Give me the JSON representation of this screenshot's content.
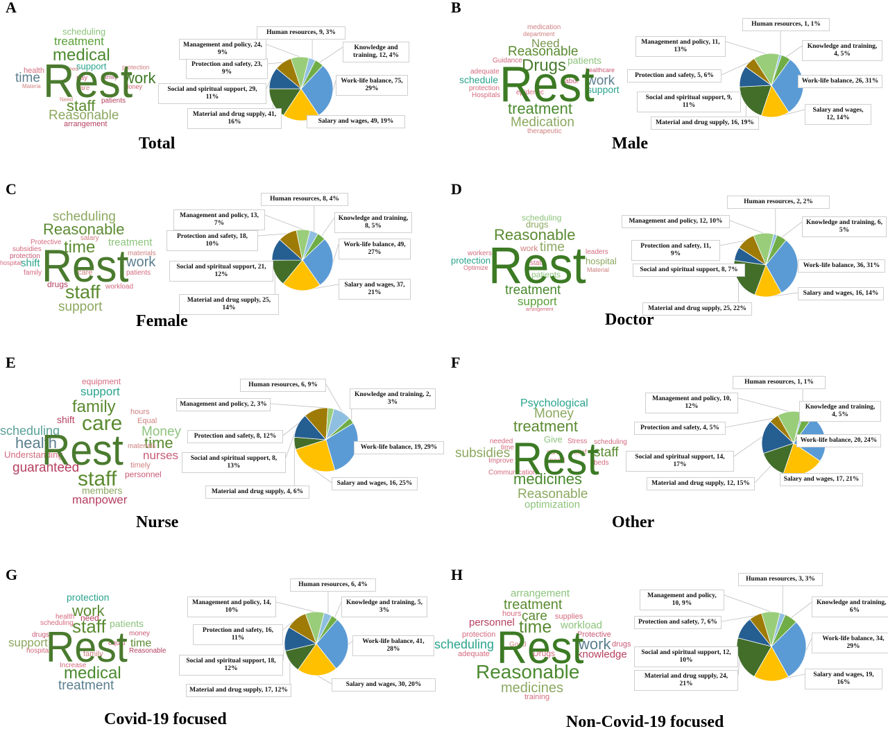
{
  "colors": {
    "Human resources": "#8FBFE0",
    "Knowledge and training": "#70AD47",
    "Work-life balance": "#5B9BD5",
    "Salary and wages": "#FFC000",
    "Material and drug supply": "#426E2A",
    "Social and spiritual support": "#255E91",
    "Protection and safety": "#9E7A07",
    "Management and policy": "#9ACD7A"
  },
  "chart_data": [
    {
      "type": "pie",
      "panel": "A",
      "title": "Total",
      "slices": [
        {
          "label": "Human resources",
          "value": 9,
          "percent": "3%"
        },
        {
          "label": "Knowledge and training",
          "value": 12,
          "percent": "4%"
        },
        {
          "label": "Work-life balance",
          "value": 75,
          "percent": "29%"
        },
        {
          "label": "Salary and wages",
          "value": 49,
          "percent": "19%"
        },
        {
          "label": "Material and drug supply",
          "value": 41,
          "percent": "16%"
        },
        {
          "label": "Social and spiritual support",
          "value": 29,
          "percent": "11%"
        },
        {
          "label": "Protection and safety",
          "value": 23,
          "percent": "9%"
        },
        {
          "label": "Management and policy",
          "value": 24,
          "percent": "9%"
        }
      ],
      "wordcloud": [
        "Rest",
        "medical",
        "treatment",
        "work",
        "staff",
        "Reasonable",
        "scheduling",
        "support",
        "time",
        "health",
        "patients",
        "arrangement",
        "protection",
        "Money",
        "family",
        "pay",
        "care",
        "need",
        "Need",
        "Materia"
      ]
    },
    {
      "type": "pie",
      "panel": "B",
      "title": "Male",
      "slices": [
        {
          "label": "Human resources",
          "value": 1,
          "percent": "1%"
        },
        {
          "label": "Knowledge and training",
          "value": 4,
          "percent": "5%"
        },
        {
          "label": "Work-life balance",
          "value": 26,
          "percent": "31%"
        },
        {
          "label": "Salary and wages",
          "value": 12,
          "percent": "14%"
        },
        {
          "label": "Material and drug supply",
          "value": 16,
          "percent": "19%"
        },
        {
          "label": "Social and spiritual support",
          "value": 9,
          "percent": "11%"
        },
        {
          "label": "Protection and safety",
          "value": 5,
          "percent": "6%"
        },
        {
          "label": "Management and policy",
          "value": 11,
          "percent": "13%"
        }
      ],
      "wordcloud": [
        "Rest",
        "Drugs",
        "Reasonable",
        "Need",
        "treatment",
        "Medication",
        "patients",
        "work",
        "support",
        "schedule",
        "medication",
        "department",
        "Guidance",
        "adequate",
        "protection",
        "Hospitals",
        "epidemic",
        "labor",
        "healthcare",
        "therapeutic"
      ]
    },
    {
      "type": "pie",
      "panel": "C",
      "title": "Female",
      "slices": [
        {
          "label": "Human resources",
          "value": 8,
          "percent": "4%"
        },
        {
          "label": "Knowledge and training",
          "value": 8,
          "percent": "5%"
        },
        {
          "label": "Work-life balance",
          "value": 49,
          "percent": "27%"
        },
        {
          "label": "Salary and wages",
          "value": 37,
          "percent": "21%"
        },
        {
          "label": "Material and drug supply",
          "value": 25,
          "percent": "14%"
        },
        {
          "label": "Social and spiritual support",
          "value": 21,
          "percent": "12%"
        },
        {
          "label": "Protection and safety",
          "value": 18,
          "percent": "10%"
        },
        {
          "label": "Management and policy",
          "value": 13,
          "percent": "7%"
        }
      ],
      "wordcloud": [
        "Rest",
        "scheduling",
        "Reasonable",
        "time",
        "staff",
        "support",
        "work",
        "treatment",
        "shift",
        "drugs",
        "workload",
        "patients",
        "materials",
        "care",
        "salary",
        "Protective",
        "subsidies",
        "protection",
        "hospital",
        "family"
      ]
    },
    {
      "type": "pie",
      "panel": "D",
      "title": "Doctor",
      "slices": [
        {
          "label": "Human resources",
          "value": 2,
          "percent": "2%"
        },
        {
          "label": "Knowledge and training",
          "value": 6,
          "percent": "5%"
        },
        {
          "label": "Work-life balance",
          "value": 36,
          "percent": "31%"
        },
        {
          "label": "Salary and wages",
          "value": 16,
          "percent": "14%"
        },
        {
          "label": "Material and drug supply",
          "value": 25,
          "percent": "22%"
        },
        {
          "label": "Social and spiritual support",
          "value": 8,
          "percent": "7%"
        },
        {
          "label": "Protection and safety",
          "value": 11,
          "percent": "9%"
        },
        {
          "label": "Management and policy",
          "value": 12,
          "percent": "10%"
        }
      ],
      "wordcloud": [
        "Rest",
        "Reasonable",
        "scheduling",
        "drugs",
        "time",
        "treatment",
        "support",
        "protection",
        "hospital",
        "work",
        "patients",
        "leaders",
        "workers",
        "Optimize",
        "staff",
        "Material",
        "Reasonable",
        "protect",
        "income",
        "arrangement"
      ]
    },
    {
      "type": "pie",
      "panel": "E",
      "title": "Nurse",
      "slices": [
        {
          "label": "Human resources",
          "value": 6,
          "percent": "9%"
        },
        {
          "label": "Knowledge and training",
          "value": 2,
          "percent": "3%"
        },
        {
          "label": "Work-life balance",
          "value": 19,
          "percent": "29%"
        },
        {
          "label": "Salary and wages",
          "value": 16,
          "percent": "25%"
        },
        {
          "label": "Material and drug supply",
          "value": 4,
          "percent": "6%"
        },
        {
          "label": "Social and spiritual support",
          "value": 8,
          "percent": "13%"
        },
        {
          "label": "Protection and safety",
          "value": 8,
          "percent": "12%"
        },
        {
          "label": "Management and policy",
          "value": 2,
          "percent": "3%"
        }
      ],
      "wordcloud": [
        "Rest",
        "care",
        "family",
        "staff",
        "health",
        "scheduling",
        "time",
        "Money",
        "nurses",
        "guaranteed",
        "members",
        "manpower",
        "support",
        "equipment",
        "shift",
        "hours",
        "Equal",
        "Understanding",
        "timely",
        "personnel"
      ]
    },
    {
      "type": "pie",
      "panel": "F",
      "title": "Other",
      "slices": [
        {
          "label": "Human resources",
          "value": 1,
          "percent": "1%"
        },
        {
          "label": "Knowledge and training",
          "value": 4,
          "percent": "5%"
        },
        {
          "label": "Work-life balance",
          "value": 20,
          "percent": "24%"
        },
        {
          "label": "Salary and wages",
          "value": 17,
          "percent": "21%"
        },
        {
          "label": "Material and drug supply",
          "value": 12,
          "percent": "15%"
        },
        {
          "label": "Social and spiritual support",
          "value": 14,
          "percent": "17%"
        },
        {
          "label": "Protection and safety",
          "value": 4,
          "percent": "5%"
        },
        {
          "label": "Management and policy",
          "value": 10,
          "percent": "12%"
        }
      ],
      "wordcloud": [
        "Rest",
        "medicines",
        "treatment",
        "Money",
        "Psychological",
        "Reasonable",
        "subsidies",
        "staff",
        "optimization",
        "Give",
        "needed",
        "time",
        "Improve",
        "Communication",
        "scheduling",
        "Stress",
        "relief",
        "care",
        "need",
        "beds"
      ]
    },
    {
      "type": "pie",
      "panel": "G",
      "title": "Covid-19 focused",
      "slices": [
        {
          "label": "Human resources",
          "value": 6,
          "percent": "4%"
        },
        {
          "label": "Knowledge and training",
          "value": 5,
          "percent": "3%"
        },
        {
          "label": "Work-life balance",
          "value": 41,
          "percent": "28%"
        },
        {
          "label": "Salary and wages",
          "value": 30,
          "percent": "20%"
        },
        {
          "label": "Material and drug supply",
          "value": 17,
          "percent": "12%"
        },
        {
          "label": "Social and spiritual support",
          "value": 18,
          "percent": "12%"
        },
        {
          "label": "Protection and safety",
          "value": 16,
          "percent": "11%"
        },
        {
          "label": "Management and policy",
          "value": 14,
          "percent": "10%"
        }
      ],
      "wordcloud": [
        "Rest",
        "staff",
        "work",
        "medical",
        "treatment",
        "protection",
        "support",
        "time",
        "patients",
        "health",
        "need",
        "scheduling",
        "drugs",
        "hospital",
        "family",
        "equal",
        "money",
        "Reasonable",
        "Increase"
      ]
    },
    {
      "type": "pie",
      "panel": "H",
      "title": "Non-Covid-19 focused",
      "slices": [
        {
          "label": "Human resources",
          "value": 3,
          "percent": "3%"
        },
        {
          "label": "Knowledge and training",
          "value": 7,
          "percent": "6%"
        },
        {
          "label": "Work-life balance",
          "value": 34,
          "percent": "29%"
        },
        {
          "label": "Salary and wages",
          "value": 19,
          "percent": "16%"
        },
        {
          "label": "Material and drug supply",
          "value": 24,
          "percent": "21%"
        },
        {
          "label": "Social and spiritual support",
          "value": 12,
          "percent": "10%"
        },
        {
          "label": "Protection and safety",
          "value": 7,
          "percent": "6%"
        },
        {
          "label": "Management and policy",
          "value": 10,
          "percent": "9%"
        }
      ],
      "wordcloud": [
        "Rest",
        "Reasonable",
        "time",
        "treatment",
        "care",
        "medicines",
        "work",
        "scheduling",
        "arrangement",
        "personnel",
        "workload",
        "knowledge",
        "protection",
        "supplies",
        "Protective",
        "Drugs",
        "adequate",
        "hours",
        "Good",
        "training"
      ]
    }
  ]
}
